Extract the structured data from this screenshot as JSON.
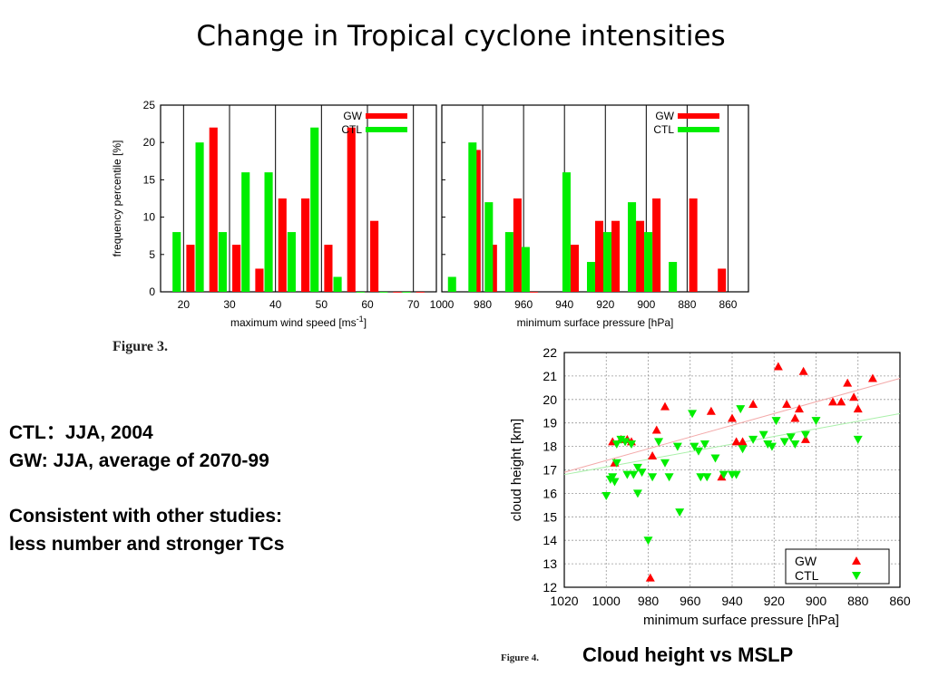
{
  "slide": {
    "title": "Change in Tropical cyclone intensities",
    "notes": {
      "line1": "CTL：JJA, 2004",
      "line2": "GW:  JJA, average of 2070-99",
      "line3": "Consistent with other studies:",
      "line4": "less number and stronger TCs"
    },
    "figure3_label": "Figure 3.",
    "figure4_label": "Figure 4.",
    "figure4_caption": "Cloud height vs MSLP"
  },
  "colors": {
    "gw": "#ff0000",
    "ctl": "#00ee00",
    "grid": "#000000"
  },
  "chart_data": [
    {
      "type": "bar",
      "xlabel": "maximum wind speed [ms",
      "xlabel_sup": "-1",
      "xlabel_end": "]",
      "ylabel": "frequency percentile [%]",
      "ylim": [
        0,
        25
      ],
      "xlim": [
        15,
        75
      ],
      "xticks": [
        20,
        30,
        40,
        50,
        60,
        70
      ],
      "yticks": [
        0,
        5,
        10,
        15,
        20,
        25
      ],
      "legend": "top-right",
      "bar_width": 1.8,
      "series": [
        {
          "name": "GW",
          "color": "#ff0000",
          "x": [
            21.5,
            26.5,
            31.5,
            36.5,
            41.5,
            46.5,
            51.5,
            56.5,
            61.5,
            66.5,
            71.5
          ],
          "values": [
            6.3,
            22,
            6.3,
            3.1,
            12.5,
            12.5,
            6.3,
            22,
            9.5,
            0,
            0
          ]
        },
        {
          "name": "CTL",
          "color": "#00ee00",
          "x": [
            18.5,
            23.5,
            28.5,
            33.5,
            38.5,
            43.5,
            48.5,
            53.5,
            58.5,
            63.5,
            68.5
          ],
          "values": [
            8,
            20,
            8,
            16,
            16,
            8,
            22,
            2,
            0,
            0,
            0
          ]
        }
      ]
    },
    {
      "type": "bar",
      "xlabel": "minimum surface pressure [hPa]",
      "ylim": [
        0,
        25
      ],
      "xlim": [
        1000,
        850
      ],
      "xticks": [
        1000,
        980,
        960,
        940,
        920,
        900,
        880,
        860
      ],
      "legend": "top-right",
      "bar_width": 4,
      "series": [
        {
          "name": "GW",
          "color": "#ff0000",
          "x": [
            983,
            975,
            963,
            955,
            935,
            923,
            915,
            903,
            895,
            877,
            863
          ],
          "values": [
            19,
            6.3,
            12.5,
            0,
            6.3,
            9.5,
            9.5,
            9.5,
            12.5,
            12.5,
            3.1
          ]
        },
        {
          "name": "CTL",
          "color": "#00ee00",
          "x": [
            995,
            985,
            977,
            967,
            959,
            939,
            927,
            919,
            907,
            899,
            887
          ],
          "values": [
            2,
            20,
            12,
            8,
            6,
            16,
            4,
            8,
            12,
            8,
            4
          ]
        }
      ]
    },
    {
      "type": "scatter",
      "xlabel": "minimum surface pressure [hPa]",
      "ylabel": "cloud height [km]",
      "xlim": [
        1020,
        860
      ],
      "ylim": [
        12,
        22
      ],
      "xticks": [
        1020,
        1000,
        980,
        960,
        940,
        920,
        900,
        880,
        860
      ],
      "yticks": [
        12,
        13,
        14,
        15,
        16,
        17,
        18,
        19,
        20,
        21,
        22
      ],
      "grid": true,
      "legend": "bottom-right",
      "series": [
        {
          "name": "GW",
          "color": "#ff0000",
          "marker": "triangle-up",
          "points": [
            [
              997,
              18.2
            ],
            [
              993,
              18.3
            ],
            [
              990,
              18.3
            ],
            [
              988,
              18.2
            ],
            [
              996,
              17.3
            ],
            [
              978,
              17.6
            ],
            [
              976,
              18.7
            ],
            [
              972,
              19.7
            ],
            [
              979,
              12.4
            ],
            [
              950,
              19.5
            ],
            [
              945,
              16.7
            ],
            [
              940,
              19.2
            ],
            [
              938,
              18.2
            ],
            [
              935,
              18.2
            ],
            [
              930,
              19.8
            ],
            [
              918,
              21.4
            ],
            [
              914,
              19.8
            ],
            [
              910,
              19.2
            ],
            [
              908,
              19.6
            ],
            [
              906,
              21.2
            ],
            [
              905,
              18.3
            ],
            [
              892,
              19.9
            ],
            [
              888,
              19.9
            ],
            [
              885,
              20.7
            ],
            [
              882,
              20.1
            ],
            [
              880,
              19.6
            ],
            [
              873,
              20.9
            ]
          ]
        },
        {
          "name": "CTL",
          "color": "#00ee00",
          "points": [
            [
              1000,
              15.9
            ],
            [
              998,
              16.6
            ],
            [
              997,
              16.7
            ],
            [
              996,
              16.5
            ],
            [
              995,
              17.3
            ],
            [
              995,
              18.1
            ],
            [
              993,
              18.3
            ],
            [
              991,
              18.2
            ],
            [
              990,
              16.8
            ],
            [
              988,
              18.1
            ],
            [
              987,
              16.8
            ],
            [
              985,
              17.1
            ],
            [
              985,
              16.0
            ],
            [
              983,
              16.9
            ],
            [
              980,
              14.0
            ],
            [
              978,
              16.7
            ],
            [
              975,
              18.2
            ],
            [
              972,
              17.3
            ],
            [
              970,
              16.7
            ],
            [
              966,
              18.0
            ],
            [
              965,
              15.2
            ],
            [
              959,
              19.4
            ],
            [
              958,
              18.0
            ],
            [
              956,
              17.8
            ],
            [
              955,
              16.7
            ],
            [
              953,
              18.1
            ],
            [
              952,
              16.7
            ],
            [
              948,
              17.5
            ],
            [
              944,
              16.8
            ],
            [
              940,
              16.8
            ],
            [
              938,
              16.8
            ],
            [
              936,
              19.6
            ],
            [
              935,
              17.9
            ],
            [
              930,
              18.3
            ],
            [
              925,
              18.5
            ],
            [
              923,
              18.1
            ],
            [
              921,
              18.0
            ],
            [
              919,
              19.1
            ],
            [
              915,
              18.2
            ],
            [
              912,
              18.4
            ],
            [
              910,
              18.1
            ],
            [
              905,
              18.5
            ],
            [
              900,
              19.1
            ],
            [
              880,
              18.3
            ]
          ],
          "marker": "triangle-down"
        }
      ]
    }
  ]
}
